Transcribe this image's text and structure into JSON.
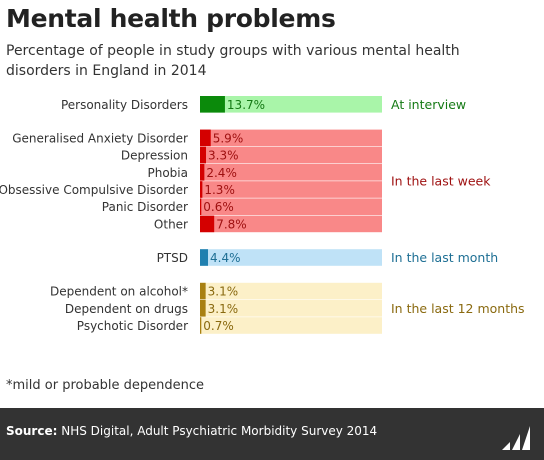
{
  "title": "Mental health problems",
  "subtitle": "Percentage of people in study groups with various mental health disorders in England in 2014",
  "footnote": "*mild or probable dependence",
  "source": {
    "label": "Source:",
    "text": "NHS Digital, Adult Psychiatric Morbidity Survey 2014"
  },
  "logo_text": "Full Fact",
  "colors": {
    "interview_bg": "#a9f5a9",
    "interview_bar": "#0b8a0b",
    "interview_text": "#157a15",
    "week_bg": "#f98888",
    "week_bar": "#d40000",
    "week_text": "#9e1010",
    "month_bg": "#bfe2f7",
    "month_bar": "#2080b0",
    "month_text": "#1e6f94",
    "year_bg": "#fcf0c8",
    "year_bar": "#a88012",
    "year_text": "#8a6a10"
  },
  "chart_data": {
    "type": "bar",
    "orientation": "horizontal",
    "xlim": [
      0,
      100
    ],
    "unit": "%",
    "groups": [
      {
        "period": "At interview",
        "color_key": "interview",
        "items": [
          {
            "label": "Personality Disorders",
            "value": 13.7,
            "value_label": "13.7%"
          }
        ]
      },
      {
        "period": "In the last  week",
        "color_key": "week",
        "items": [
          {
            "label": "Generalised Anxiety Disorder",
            "value": 5.9,
            "value_label": "5.9%"
          },
          {
            "label": "Depression",
            "value": 3.3,
            "value_label": "3.3%"
          },
          {
            "label": "Phobia",
            "value": 2.4,
            "value_label": "2.4%"
          },
          {
            "label": "Obsessive Compulsive Disorder",
            "value": 1.3,
            "value_label": "1.3%"
          },
          {
            "label": "Panic Disorder",
            "value": 0.6,
            "value_label": "0.6%"
          },
          {
            "label": "Other",
            "value": 7.8,
            "value_label": "7.8%"
          }
        ]
      },
      {
        "period": "In the last  month",
        "color_key": "month",
        "items": [
          {
            "label": "PTSD",
            "value": 4.4,
            "value_label": "4.4%"
          }
        ]
      },
      {
        "period": "In the last  12 months",
        "color_key": "year",
        "items": [
          {
            "label": "Dependent on alcohol*",
            "value": 3.1,
            "value_label": "3.1%"
          },
          {
            "label": "Dependent on drugs",
            "value": 3.1,
            "value_label": "3.1%"
          },
          {
            "label": "Psychotic Disorder",
            "value": 0.7,
            "value_label": "0.7%"
          }
        ]
      }
    ]
  }
}
